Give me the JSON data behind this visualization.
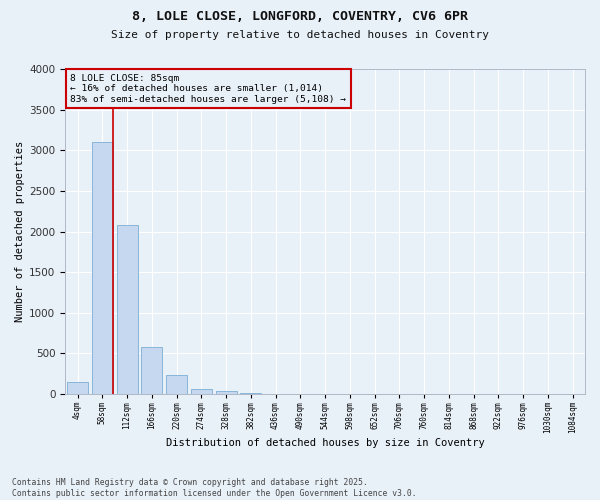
{
  "title_line1": "8, LOLE CLOSE, LONGFORD, COVENTRY, CV6 6PR",
  "title_line2": "Size of property relative to detached houses in Coventry",
  "xlabel": "Distribution of detached houses by size in Coventry",
  "ylabel": "Number of detached properties",
  "bar_color": "#c5d8ef",
  "bar_edge_color": "#7aaed4",
  "background_color": "#e8f0f8",
  "grid_color": "#ffffff",
  "vline_color": "#cc0000",
  "vline_x": 1.42,
  "annotation_text": "8 LOLE CLOSE: 85sqm\n← 16% of detached houses are smaller (1,014)\n83% of semi-detached houses are larger (5,108) →",
  "annotation_box_color": "#cc0000",
  "categories": [
    "4sqm",
    "58sqm",
    "112sqm",
    "166sqm",
    "220sqm",
    "274sqm",
    "328sqm",
    "382sqm",
    "436sqm",
    "490sqm",
    "544sqm",
    "598sqm",
    "652sqm",
    "706sqm",
    "760sqm",
    "814sqm",
    "868sqm",
    "922sqm",
    "976sqm",
    "1030sqm",
    "1084sqm"
  ],
  "values": [
    150,
    3100,
    2080,
    575,
    240,
    60,
    35,
    10,
    5,
    0,
    0,
    0,
    0,
    0,
    0,
    0,
    0,
    0,
    0,
    0,
    0
  ],
  "ylim": [
    0,
    4000
  ],
  "yticks": [
    0,
    500,
    1000,
    1500,
    2000,
    2500,
    3000,
    3500,
    4000
  ],
  "footer_text": "Contains HM Land Registry data © Crown copyright and database right 2025.\nContains public sector information licensed under the Open Government Licence v3.0.",
  "figsize": [
    6.0,
    5.0
  ],
  "dpi": 100
}
